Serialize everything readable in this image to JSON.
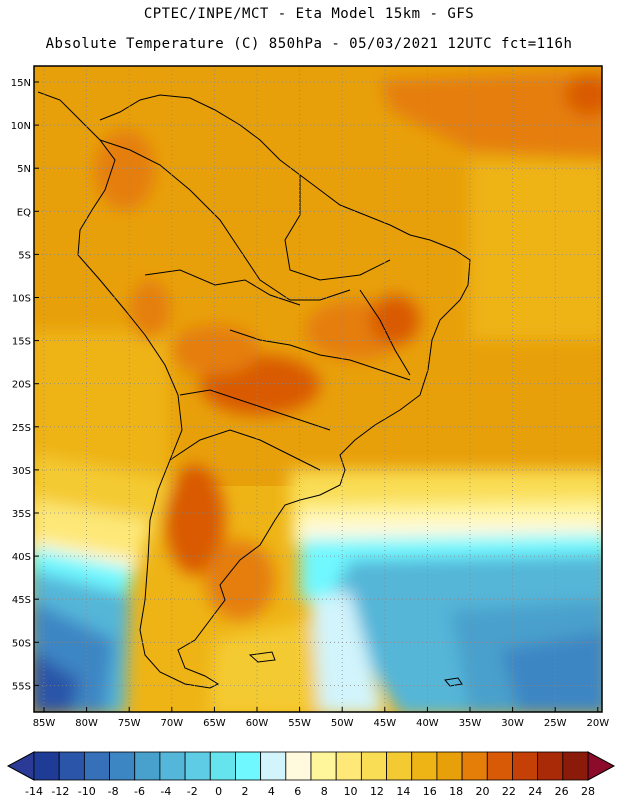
{
  "header": {
    "line1": "CPTEC/INPE/MCT -  Eta Model 15km - GFS",
    "line2": "Absolute Temperature (C) 850hPa - 05/03/2021 12UTC fct=116h"
  },
  "map": {
    "lat_labels": [
      "15N",
      "10N",
      "5N",
      "EQ",
      "5S",
      "10S",
      "15S",
      "20S",
      "25S",
      "30S",
      "35S",
      "40S",
      "45S",
      "50S",
      "55S"
    ],
    "lon_labels": [
      "85W",
      "80W",
      "75W",
      "70W",
      "65W",
      "60W",
      "55W",
      "50W",
      "45W",
      "40W",
      "35W",
      "30W",
      "25W",
      "20W"
    ]
  },
  "colorbar": {
    "labels": [
      "-14",
      "-12",
      "-10",
      "-8",
      "-6",
      "-4",
      "-2",
      "0",
      "2",
      "4",
      "6",
      "8",
      "10",
      "12",
      "14",
      "16",
      "18",
      "20",
      "22",
      "24",
      "26",
      "28"
    ],
    "colors": [
      "#1e3c96",
      "#2a55a8",
      "#3570b8",
      "#3d86c4",
      "#48a0cc",
      "#54b6d8",
      "#5fcce6",
      "#66e4ee",
      "#6ff8ff",
      "#d2f4fc",
      "#fffade",
      "#fff59b",
      "#fde878",
      "#f9dd55",
      "#f4ca32",
      "#eeb416",
      "#e8a00a",
      "#e57e08",
      "#d95a06",
      "#c44006",
      "#a82a06",
      "#8a1a0a"
    ],
    "under_color": "#2a3a96",
    "over_color": "#8c0a2a"
  }
}
